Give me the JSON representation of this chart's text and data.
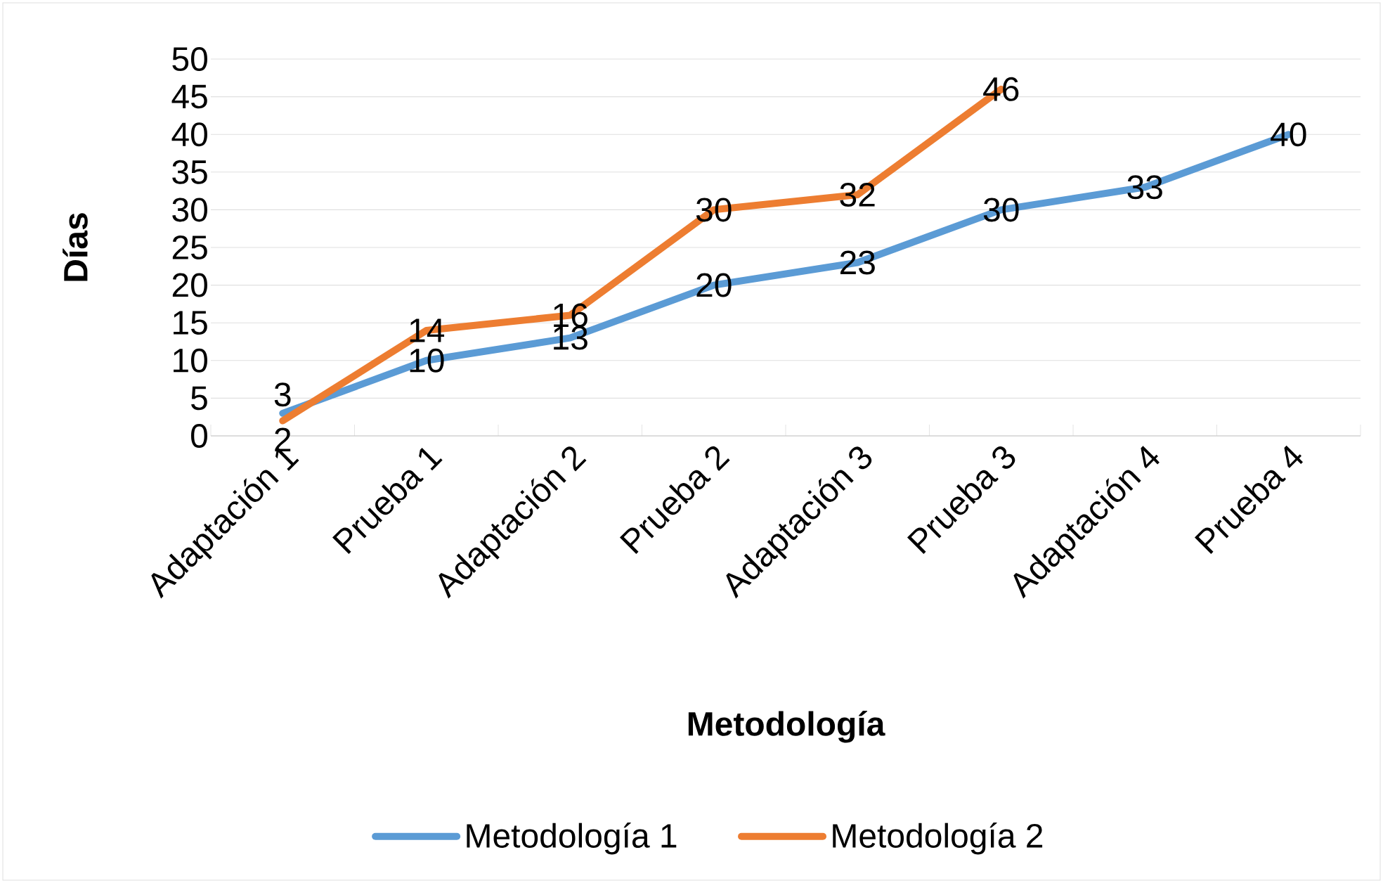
{
  "chart_data": {
    "type": "line",
    "xlabel": "Metodología",
    "ylabel": "Días",
    "categories": [
      "Adaptación 1",
      "Prueba 1",
      "Adaptación 2",
      "Prueba 2",
      "Adaptación 3",
      "Prueba 3",
      "Adaptación 4",
      "Prueba 4"
    ],
    "series": [
      {
        "name": "Metodología 1",
        "color": "#5b9bd5",
        "values": [
          3,
          10,
          13,
          20,
          23,
          30,
          33,
          40
        ]
      },
      {
        "name": "Metodología 2",
        "color": "#ed7d31",
        "values": [
          2,
          14,
          16,
          30,
          32,
          46,
          null,
          null
        ]
      }
    ],
    "ylim": [
      0,
      50
    ],
    "yticks": [
      0,
      5,
      10,
      15,
      20,
      25,
      30,
      35,
      40,
      45,
      50
    ],
    "grid": "y",
    "legend": "bottom",
    "data_labels": true
  }
}
